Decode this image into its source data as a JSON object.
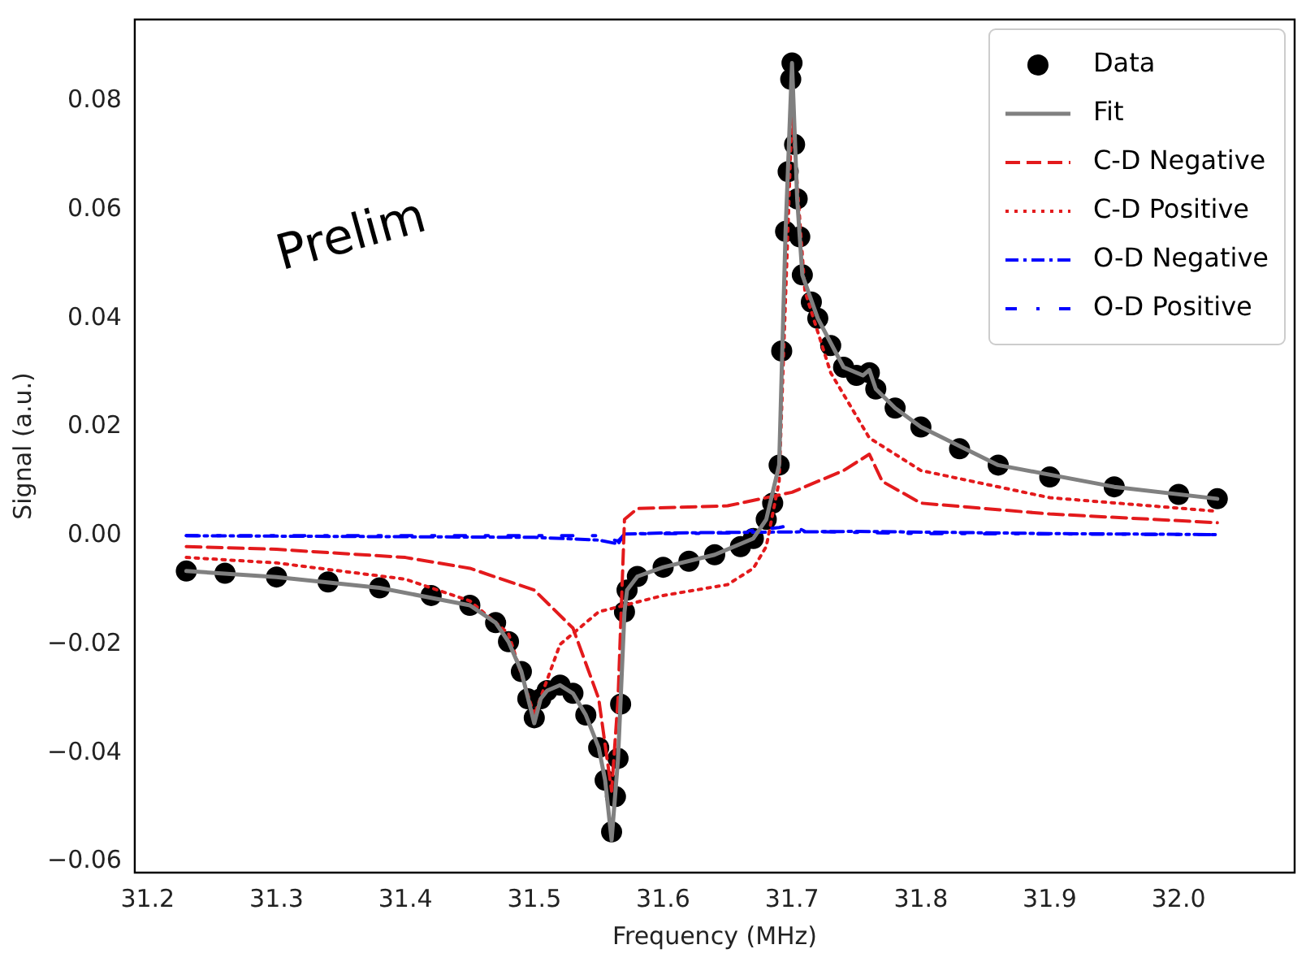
{
  "chart_data": {
    "type": "line",
    "xlabel": "Frequency (MHz)",
    "ylabel": "Signal (a.u.)",
    "annotations": [
      "Prelim"
    ],
    "xlim": [
      31.19,
      32.09
    ],
    "ylim": [
      -0.062,
      0.095
    ],
    "xticks": [
      31.2,
      31.3,
      31.4,
      31.5,
      31.6,
      31.7,
      31.8,
      31.9,
      {
        "value": 32.0,
        "label": "32.0"
      }
    ],
    "yticks": [
      {
        "value": -0.06,
        "label": "−0.06"
      },
      {
        "value": -0.04,
        "label": "−0.04"
      },
      {
        "value": -0.02,
        "label": "−0.02"
      },
      {
        "value": 0,
        "label": "0.00"
      },
      0.02,
      0.04,
      0.06,
      0.08
    ],
    "grid": false,
    "legend": "top right",
    "series": [
      {
        "name": "Data",
        "type": "scatter",
        "marker": "circle",
        "color": "#000000",
        "x": [
          31.23,
          31.26,
          31.3,
          31.34,
          31.38,
          31.42,
          31.45,
          31.47,
          31.48,
          31.49,
          31.495,
          31.5,
          31.505,
          31.51,
          31.52,
          31.53,
          31.54,
          31.55,
          31.555,
          31.56,
          31.563,
          31.565,
          31.567,
          31.57,
          31.572,
          31.58,
          31.6,
          31.62,
          31.64,
          31.66,
          31.67,
          31.68,
          31.685,
          31.69,
          31.692,
          31.695,
          31.697,
          31.699,
          31.7,
          31.702,
          31.704,
          31.706,
          31.708,
          31.715,
          31.72,
          31.73,
          31.74,
          31.75,
          31.76,
          31.765,
          31.78,
          31.8,
          31.83,
          31.86,
          31.9,
          31.95,
          32.0,
          32.03
        ],
        "values": [
          -0.0065,
          -0.0069,
          -0.0076,
          -0.0085,
          -0.0096,
          -0.011,
          -0.0128,
          -0.016,
          -0.0195,
          -0.025,
          -0.03,
          -0.0335,
          -0.03,
          -0.0285,
          -0.0275,
          -0.029,
          -0.033,
          -0.039,
          -0.045,
          -0.0545,
          -0.048,
          -0.041,
          -0.031,
          -0.014,
          -0.01,
          -0.0075,
          -0.0058,
          -0.0047,
          -0.0035,
          -0.002,
          -0.0005,
          0.003,
          0.006,
          0.013,
          0.034,
          0.056,
          0.067,
          0.084,
          0.087,
          0.072,
          0.062,
          0.055,
          0.048,
          0.043,
          0.04,
          0.035,
          0.031,
          0.0295,
          0.03,
          0.027,
          0.0235,
          0.02,
          0.016,
          0.013,
          0.0108,
          0.009,
          0.0076,
          0.0068
        ]
      },
      {
        "name": "Fit",
        "line_style": "solid",
        "color": "#808080",
        "x": [
          31.23,
          31.3,
          31.38,
          31.45,
          31.47,
          31.48,
          31.49,
          31.5,
          31.505,
          31.51,
          31.52,
          31.53,
          31.54,
          31.55,
          31.555,
          31.56,
          31.565,
          31.57,
          31.572,
          31.58,
          31.6,
          31.64,
          31.67,
          31.68,
          31.69,
          31.695,
          31.7,
          31.704,
          31.708,
          31.72,
          31.74,
          31.755,
          31.76,
          31.765,
          31.78,
          31.8,
          31.86,
          31.95,
          32.03
        ],
        "values": [
          -0.0065,
          -0.0076,
          -0.0096,
          -0.0128,
          -0.016,
          -0.0195,
          -0.025,
          -0.0345,
          -0.03,
          -0.0285,
          -0.0275,
          -0.029,
          -0.033,
          -0.039,
          -0.045,
          -0.056,
          -0.041,
          -0.014,
          -0.01,
          -0.0075,
          -0.0058,
          -0.0035,
          -0.0005,
          0.003,
          0.013,
          0.056,
          0.087,
          0.062,
          0.048,
          0.04,
          0.031,
          0.0295,
          0.0305,
          0.027,
          0.0235,
          0.02,
          0.013,
          0.009,
          0.0068
        ]
      },
      {
        "name": "C-D Negative",
        "line_style": "dashed",
        "color": "#e31a1c",
        "x": [
          31.23,
          31.3,
          31.4,
          31.45,
          31.5,
          31.53,
          31.55,
          31.56,
          31.565,
          31.57,
          31.58,
          31.65,
          31.7,
          31.74,
          31.76,
          31.77,
          31.8,
          31.9,
          32.03
        ],
        "values": [
          -0.002,
          -0.0025,
          -0.004,
          -0.006,
          -0.01,
          -0.017,
          -0.03,
          -0.047,
          -0.03,
          0.003,
          0.005,
          0.0055,
          0.008,
          0.012,
          0.015,
          0.01,
          0.006,
          0.004,
          0.0024
        ]
      },
      {
        "name": "C-D Positive",
        "line_style": "dotted",
        "color": "#e31a1c",
        "x": [
          31.23,
          31.3,
          31.4,
          31.45,
          31.48,
          31.5,
          31.52,
          31.55,
          31.6,
          31.65,
          31.67,
          31.68,
          31.69,
          31.7,
          31.71,
          31.73,
          31.76,
          31.8,
          31.9,
          32.03
        ],
        "values": [
          -0.004,
          -0.005,
          -0.008,
          -0.012,
          -0.018,
          -0.033,
          -0.02,
          -0.014,
          -0.011,
          -0.009,
          -0.006,
          -0.002,
          0.01,
          0.078,
          0.045,
          0.03,
          0.018,
          0.012,
          0.007,
          0.0045
        ]
      },
      {
        "name": "O-D Negative",
        "line_style": "dashdot",
        "color": "#0000ff",
        "x": [
          31.23,
          31.5,
          31.55,
          31.565,
          31.57,
          31.6,
          31.7,
          31.75,
          31.9,
          32.03
        ],
        "values": [
          0,
          -0.0003,
          -0.0008,
          -0.0015,
          0.0003,
          0.0005,
          0.0007,
          0.0008,
          0.0004,
          0.0002
        ]
      },
      {
        "name": "O-D Positive",
        "line_style": "loosely dashdot",
        "color": "#0000ff",
        "x": [
          31.23,
          31.55,
          31.565,
          31.57,
          31.65,
          31.69,
          31.7,
          31.71,
          31.8,
          32.03
        ],
        "values": [
          0,
          0,
          -0.001,
          0.0003,
          0.0005,
          0.0015,
          0.002,
          0.0008,
          0.0004,
          0.0002
        ]
      }
    ]
  }
}
